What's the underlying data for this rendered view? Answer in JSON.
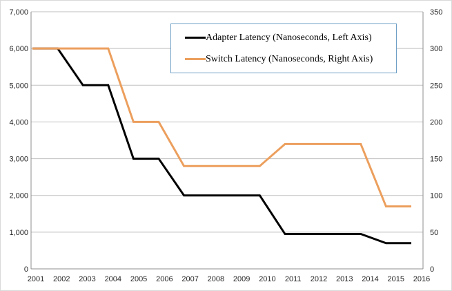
{
  "chart_data": {
    "type": "line",
    "title": "",
    "categories": [
      "2001",
      "2002",
      "2003",
      "2004",
      "2005",
      "2006",
      "2007",
      "2008",
      "2009",
      "2010",
      "2011",
      "2012",
      "2013",
      "2014",
      "2015",
      "2016"
    ],
    "series": [
      {
        "id": "adapter",
        "name": "Adapter Latency (Nanoseconds, Left Axis)",
        "axis": "left",
        "color": "#000000",
        "values": [
          6000,
          6000,
          5000,
          5000,
          3000,
          3000,
          2000,
          2000,
          2000,
          2000,
          950,
          950,
          950,
          950,
          700,
          700
        ]
      },
      {
        "id": "switch",
        "name": "Switch Latency (Nanoseconds, Right Axis)",
        "axis": "right",
        "color": "#EC9F5D",
        "values": [
          300,
          300,
          300,
          300,
          200,
          200,
          140,
          140,
          140,
          140,
          170,
          170,
          170,
          170,
          85,
          85
        ]
      }
    ],
    "left_axis": {
      "min": 0,
      "max": 7000,
      "step": 1000,
      "tick_labels": [
        "0",
        "1,000",
        "2,000",
        "3,000",
        "4,000",
        "5,000",
        "6,000",
        "7,000"
      ]
    },
    "right_axis": {
      "min": 0,
      "max": 350,
      "step": 50,
      "tick_labels": [
        "0",
        "50",
        "100",
        "150",
        "200",
        "250",
        "300",
        "350"
      ]
    },
    "grid": true,
    "legend_position": "top-center-inside"
  },
  "colors": {
    "gridline": "#BFBFBF",
    "axis": "#8E8E8E",
    "legend_border": "#6FA0C6",
    "text": "#262626",
    "background": "#FFFFFF"
  }
}
